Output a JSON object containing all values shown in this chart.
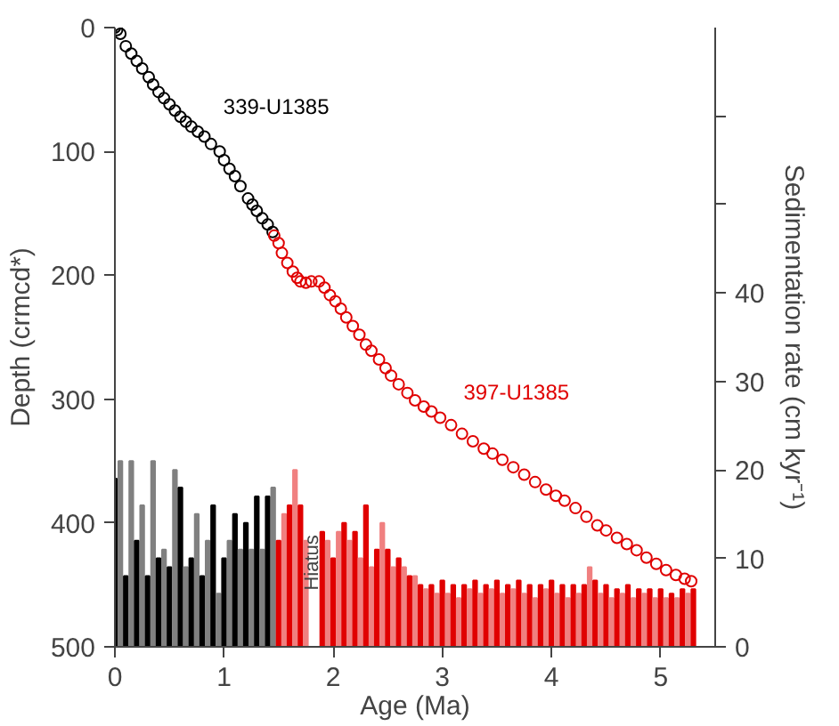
{
  "chart_data": {
    "type": "scatter",
    "xlabel": "Age (Ma)",
    "ylabel": "Depth (crmcd*)",
    "y2label": "Sedimentation rate (cm kyr⁻¹)",
    "xlim": [
      0,
      5.5
    ],
    "xticks": [
      0,
      1,
      2,
      3,
      4,
      5
    ],
    "ylim": [
      500,
      0
    ],
    "yticks": [
      0,
      100,
      200,
      300,
      400,
      500
    ],
    "y2lim": [
      0,
      70
    ],
    "y2ticks": [
      0,
      10,
      20,
      30,
      40,
      {
        "value": 50,
        "label": null
      },
      {
        "value": 60,
        "label": null
      }
    ],
    "grid": false,
    "marker": "circle",
    "annotations": [
      {
        "text": "Hiatus",
        "x": 1.81,
        "y": 432
      }
    ],
    "series": [
      {
        "type": "bar",
        "axis": "y2",
        "x": [
          0.0,
          0.05,
          0.1,
          0.15,
          0.2,
          0.25,
          0.3,
          0.35,
          0.4,
          0.45,
          0.5,
          0.55,
          0.6,
          0.65,
          0.7,
          0.75,
          0.8,
          0.85,
          0.9,
          0.95,
          1.0,
          1.05,
          1.1,
          1.15,
          1.2,
          1.25,
          1.3,
          1.35,
          1.4,
          1.45
        ],
        "values": [
          19,
          21,
          8,
          21,
          12,
          16,
          8,
          21,
          10,
          11,
          9,
          20,
          18,
          9,
          10,
          15,
          8,
          12,
          16,
          6,
          10,
          12,
          15,
          11,
          14,
          11,
          17,
          11,
          17,
          18
        ],
        "colors": [
          "#000000",
          "#808080",
          "#000000",
          "#808080",
          "#000000",
          "#808080",
          "#000000",
          "#808080",
          "#000000",
          "#808080",
          "#000000",
          "#808080",
          "#000000",
          "#808080",
          "#000000",
          "#808080",
          "#000000",
          "#808080",
          "#000000",
          "#808080",
          "#000000",
          "#808080",
          "#000000",
          "#808080",
          "#000000",
          "#808080",
          "#000000",
          "#808080",
          "#000000",
          "#808080"
        ]
      },
      {
        "type": "bar",
        "axis": "y2",
        "x": [
          1.5,
          1.55,
          1.6,
          1.65,
          1.7,
          1.75,
          1.8,
          1.85,
          1.9,
          1.95,
          2.0,
          2.05,
          2.1,
          2.15,
          2.2,
          2.25,
          2.3,
          2.35,
          2.4,
          2.45,
          2.5,
          2.55,
          2.6,
          2.65,
          2.7,
          2.75,
          2.8,
          2.85,
          2.9,
          2.95,
          3.0,
          3.05,
          3.1,
          3.15,
          3.2,
          3.25,
          3.3,
          3.35,
          3.4,
          3.45,
          3.5,
          3.55,
          3.6,
          3.65,
          3.7,
          3.75,
          3.8,
          3.85,
          3.9,
          3.95,
          4.0,
          4.05,
          4.1,
          4.15,
          4.2,
          4.25,
          4.3,
          4.35,
          4.4,
          4.45,
          4.5,
          4.55,
          4.6,
          4.65,
          4.7,
          4.75,
          4.8,
          4.85,
          4.9,
          4.95,
          5.0,
          5.05,
          5.1,
          5.15,
          5.2,
          5.25,
          5.3
        ],
        "values": [
          12,
          15,
          16,
          20,
          16,
          12,
          null,
          null,
          13,
          12,
          10,
          13,
          14,
          12,
          13,
          10,
          16,
          9,
          11,
          14,
          11,
          9,
          10,
          9,
          8,
          8,
          7,
          6.5,
          7,
          6,
          7.5,
          6,
          7,
          5.5,
          7,
          6.5,
          7.5,
          6,
          7,
          6.5,
          7.5,
          6,
          7,
          6.5,
          7.5,
          6,
          7,
          5.5,
          7,
          6.5,
          7.5,
          6,
          7,
          5.5,
          7,
          6,
          7,
          9,
          7.5,
          6,
          7,
          5.5,
          6.5,
          6,
          7,
          5.5,
          6.5,
          6,
          6.5,
          5.5,
          6.5,
          5.5,
          6,
          5.5,
          6.5,
          6,
          6.5
        ],
        "colors": [
          "#e00000",
          "#f08080",
          "#e00000",
          "#f08080",
          "#e00000",
          "#f08080",
          "#e00000",
          "#f08080",
          "#e00000",
          "#f08080",
          "#e00000",
          "#f08080",
          "#e00000",
          "#f08080",
          "#e00000",
          "#f08080",
          "#e00000",
          "#f08080",
          "#e00000",
          "#f08080",
          "#e00000",
          "#f08080",
          "#e00000",
          "#f08080",
          "#e00000",
          "#f08080",
          "#e00000",
          "#f08080",
          "#e00000",
          "#f08080",
          "#e00000",
          "#f08080",
          "#e00000",
          "#f08080",
          "#e00000",
          "#f08080",
          "#e00000",
          "#f08080",
          "#e00000",
          "#f08080",
          "#e00000",
          "#f08080",
          "#e00000",
          "#f08080",
          "#e00000",
          "#f08080",
          "#e00000",
          "#f08080",
          "#e00000",
          "#f08080",
          "#e00000",
          "#f08080",
          "#e00000",
          "#f08080",
          "#e00000",
          "#f08080",
          "#e00000",
          "#f08080",
          "#e00000",
          "#f08080",
          "#e00000",
          "#f08080",
          "#e00000",
          "#f08080",
          "#e00000",
          "#f08080",
          "#e00000",
          "#f08080",
          "#e00000",
          "#f08080",
          "#e00000",
          "#f08080",
          "#e00000",
          "#f08080",
          "#e00000",
          "#f08080",
          "#e00000"
        ]
      },
      {
        "name": "339-U1385",
        "color": "#000000",
        "x": [
          0,
          0.02,
          0.05,
          0.1,
          0.15,
          0.2,
          0.25,
          0.31,
          0.35,
          0.4,
          0.45,
          0.5,
          0.55,
          0.6,
          0.65,
          0.7,
          0.76,
          0.82,
          0.88,
          0.96,
          1.0,
          1.05,
          1.1,
          1.15,
          1.22,
          1.26,
          1.3,
          1.35,
          1.4,
          1.445
        ],
        "values": [
          0,
          2,
          5,
          15,
          21,
          27,
          33,
          40,
          46,
          52,
          57,
          62,
          67,
          72,
          76,
          80,
          84,
          88,
          94,
          100,
          107,
          114,
          120,
          128,
          138,
          143,
          148,
          154,
          159,
          165
        ]
      },
      {
        "name": "397-U1385",
        "color": "#e00000",
        "x": [
          1.46,
          1.5,
          1.53,
          1.58,
          1.63,
          1.67,
          1.7,
          1.75,
          1.8,
          1.87,
          1.92,
          1.97,
          2.02,
          2.07,
          2.12,
          2.18,
          2.24,
          2.3,
          2.35,
          2.42,
          2.48,
          2.53,
          2.6,
          2.68,
          2.75,
          2.83,
          2.9,
          2.98,
          3.08,
          3.18,
          3.28,
          3.38,
          3.46,
          3.55,
          3.65,
          3.75,
          3.85,
          3.95,
          4.04,
          4.12,
          4.22,
          4.32,
          4.42,
          4.5,
          4.6,
          4.69,
          4.78,
          4.87,
          4.96,
          5.05,
          5.14,
          5.22,
          5.28
        ],
        "values": [
          168,
          174,
          182,
          190,
          197,
          202,
          205,
          206,
          205,
          205,
          210,
          216,
          221,
          227,
          234,
          241,
          248,
          256,
          261,
          268,
          275,
          281,
          288,
          295,
          301,
          306,
          310,
          315,
          321,
          328,
          334,
          340,
          344,
          349,
          355,
          361,
          367,
          373,
          378,
          382,
          388,
          395,
          402,
          406,
          412,
          417,
          422,
          428,
          433,
          438,
          442,
          445,
          447
        ]
      }
    ]
  }
}
